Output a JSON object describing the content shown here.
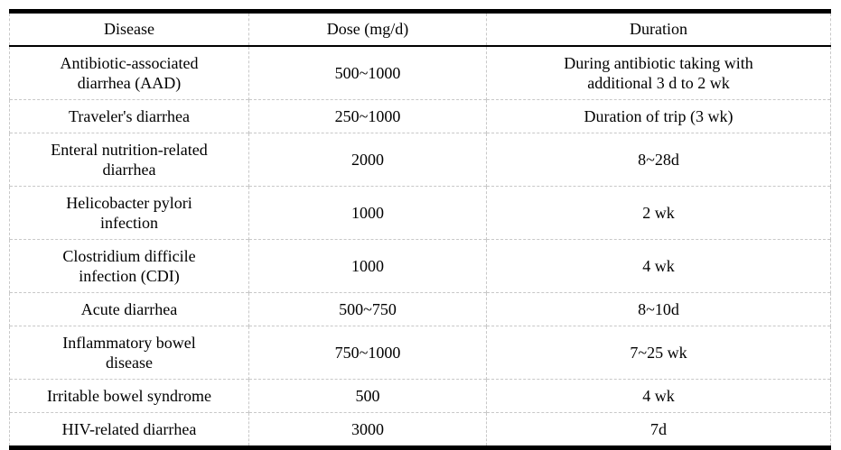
{
  "chart_data": {
    "type": "table",
    "title": "",
    "columns": [
      "Disease",
      "Dose (mg/d)",
      "Duration"
    ],
    "rows": [
      [
        "Antibiotic-associated\ndiarrhea (AAD)",
        "500~1000",
        "During antibiotic taking with\nadditional 3 d to 2 wk"
      ],
      [
        "Traveler's diarrhea",
        "250~1000",
        "Duration of trip (3 wk)"
      ],
      [
        "Enteral nutrition-related\ndiarrhea",
        "2000",
        "8~28d"
      ],
      [
        "Helicobacter pylori\ninfection",
        "1000",
        "2 wk"
      ],
      [
        "Clostridium difficile\ninfection (CDI)",
        "1000",
        "4 wk"
      ],
      [
        "Acute diarrhea",
        "500~750",
        "8~10d"
      ],
      [
        "Inflammatory bowel\ndisease",
        "750~1000",
        "7~25 wk"
      ],
      [
        "Irritable bowel syndrome",
        "500",
        "4 wk"
      ],
      [
        "HIV-related diarrhea",
        "3000",
        "7d"
      ]
    ],
    "layout": {
      "grid": "inner lines dashed light gray, header underlined solid black, thick black top and bottom rules",
      "text_align": "center"
    }
  },
  "colors": {
    "background": "#ffffff",
    "text": "#000000",
    "heavy_rule": "#000000",
    "light_rule": "#c8c8c8"
  }
}
